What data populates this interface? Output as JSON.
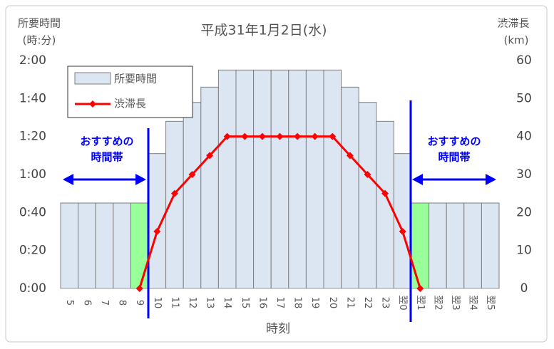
{
  "chart_data": {
    "type": "bar_line",
    "title": "平成31年1月2日(水)",
    "y_label": [
      "所要時間",
      "(時:分)"
    ],
    "y2_label": [
      "渋滞長",
      "(km)"
    ],
    "x_label": "時刻",
    "categories": [
      "5",
      "6",
      "7",
      "8",
      "9",
      "10",
      "11",
      "12",
      "13",
      "14",
      "15",
      "16",
      "17",
      "18",
      "19",
      "20",
      "21",
      "22",
      "23",
      "翌0",
      "翌1",
      "翌2",
      "翌3",
      "翌4",
      "翌5"
    ],
    "series": [
      {
        "name": "所要時間",
        "type": "bar",
        "color": "#dce6f2",
        "edge": "#7f7f7f",
        "colors": [
          "#dce6f2",
          "#dce6f2",
          "#dce6f2",
          "#dce6f2",
          "#99ff99",
          "#dce6f2",
          "#dce6f2",
          "#dce6f2",
          "#dce6f2",
          "#dce6f2",
          "#dce6f2",
          "#dce6f2",
          "#dce6f2",
          "#dce6f2",
          "#dce6f2",
          "#dce6f2",
          "#dce6f2",
          "#dce6f2",
          "#dce6f2",
          "#dce6f2",
          "#99ff99",
          "#dce6f2",
          "#dce6f2",
          "#dce6f2",
          "#dce6f2"
        ],
        "values": [
          45,
          45,
          45,
          45,
          45,
          71,
          88,
          98,
          106,
          115,
          115,
          115,
          115,
          115,
          115,
          115,
          106,
          98,
          88,
          71,
          45,
          45,
          45,
          45,
          45
        ]
      },
      {
        "name": "渋滞長",
        "type": "line",
        "axis": "y2",
        "color": "#ff0000",
        "values": [
          null,
          null,
          null,
          null,
          0,
          15,
          25,
          30,
          35,
          40,
          40,
          40,
          40,
          40,
          40,
          40,
          35,
          30,
          25,
          15,
          0,
          null,
          null,
          null,
          null
        ]
      }
    ],
    "ylim": [
      0,
      120
    ],
    "yticks": [
      {
        "value": 0,
        "label": "0:00"
      },
      {
        "value": 20,
        "label": "0:20"
      },
      {
        "value": 40,
        "label": "0:40"
      },
      {
        "value": 60,
        "label": "1:00"
      },
      {
        "value": 80,
        "label": "1:20"
      },
      {
        "value": 100,
        "label": "1:40"
      },
      {
        "value": 120,
        "label": "2:00"
      }
    ],
    "y2lim": [
      0,
      60
    ],
    "y2ticks": [
      0,
      10,
      20,
      30,
      40,
      50,
      60
    ],
    "legend": "upper left",
    "annotations": [
      {
        "lines": [
          "おすすめの",
          "時間帯"
        ]
      },
      {
        "lines": [
          "おすすめの",
          "時間帯"
        ]
      }
    ]
  }
}
